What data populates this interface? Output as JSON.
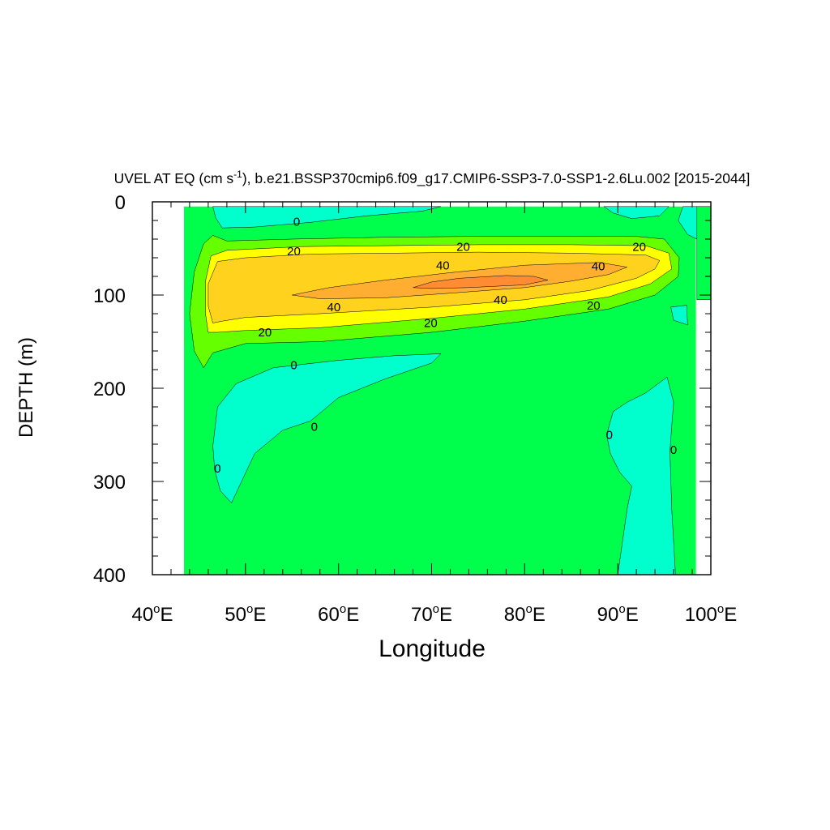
{
  "chart_data": {
    "type": "contour",
    "title": {
      "prefix": "UVEL AT EQ (cm s",
      "superscript": "-1",
      "suffix": "), b.e21.BSSP370cmip6.f09_g17.CMIP6-SSP3-7.0-SSP1-2.6Lu.002 [2015-2044]"
    },
    "xlabel": "Longitude",
    "ylabel": "DEPTH (m)",
    "xlim": [
      40,
      100
    ],
    "ylim": [
      0,
      400
    ],
    "y_inverted": true,
    "x_ticks": [
      {
        "value": 40,
        "num": "40",
        "sup": "o",
        "suffix": "E"
      },
      {
        "value": 50,
        "num": "50",
        "sup": "o",
        "suffix": "E"
      },
      {
        "value": 60,
        "num": "60",
        "sup": "o",
        "suffix": "E"
      },
      {
        "value": 70,
        "num": "70",
        "sup": "o",
        "suffix": "E"
      },
      {
        "value": 80,
        "num": "80",
        "sup": "o",
        "suffix": "E"
      },
      {
        "value": 90,
        "num": "90",
        "sup": "o",
        "suffix": "E"
      },
      {
        "value": 100,
        "num": "100",
        "sup": "o",
        "suffix": "E"
      }
    ],
    "y_ticks": [
      {
        "value": 0,
        "label": "0"
      },
      {
        "value": 100,
        "label": "100"
      },
      {
        "value": 200,
        "label": "200"
      },
      {
        "value": 300,
        "label": "300"
      },
      {
        "value": 400,
        "label": "400"
      }
    ],
    "level_colors": {
      "negative": "#00ffcc",
      "0_to_10": "#00ff4c",
      "10_to_20": "#66ff00",
      "20_to_30": "#ffff00",
      "30_to_40": "#ffd21e",
      "40_to_50": "#ffae32",
      "50_plus": "#ff8c32"
    },
    "regions": [
      {
        "level": "0_to_10",
        "points": [
          [
            43.4,
            5
          ],
          [
            98.4,
            5
          ],
          [
            98.4,
            110
          ],
          [
            98.4,
            400
          ],
          [
            43.4,
            400
          ]
        ]
      },
      {
        "level": "negative",
        "points": [
          [
            97,
            5
          ],
          [
            100,
            5
          ],
          [
            100,
            35
          ],
          [
            98.5,
            40
          ],
          [
            97.5,
            35
          ],
          [
            96.5,
            20
          ]
        ]
      },
      {
        "level": "0_to_10",
        "points": [
          [
            98.5,
            5
          ],
          [
            100,
            5
          ],
          [
            100,
            105
          ],
          [
            98.5,
            105
          ]
        ]
      },
      {
        "level": "negative",
        "points": [
          [
            46.5,
            5
          ],
          [
            71,
            5
          ],
          [
            69,
            10
          ],
          [
            63,
            15
          ],
          [
            57,
            22
          ],
          [
            51,
            27
          ],
          [
            47.5,
            28
          ],
          [
            46.8,
            17
          ]
        ]
      },
      {
        "level": "negative",
        "points": [
          [
            88.5,
            5
          ],
          [
            95.5,
            5
          ],
          [
            94.5,
            15
          ],
          [
            91.5,
            18
          ],
          [
            89.5,
            12
          ]
        ]
      },
      {
        "level": "negative",
        "points": [
          [
            95.7,
            113
          ],
          [
            97.4,
            111
          ],
          [
            97.5,
            132
          ],
          [
            96,
            127
          ]
        ]
      },
      {
        "level": "negative",
        "points": [
          [
            71,
            163
          ],
          [
            70,
            173
          ],
          [
            65,
            190
          ],
          [
            60,
            210
          ],
          [
            57,
            235
          ],
          [
            54,
            245
          ],
          [
            51,
            270
          ],
          [
            48.5,
            323
          ],
          [
            47.3,
            310
          ],
          [
            46.7,
            288
          ],
          [
            46.5,
            262
          ],
          [
            47,
            220
          ],
          [
            49,
            195
          ],
          [
            53,
            178
          ],
          [
            60,
            170
          ],
          [
            66,
            165
          ]
        ]
      },
      {
        "level": "negative",
        "points": [
          [
            95.3,
            188
          ],
          [
            96,
            215
          ],
          [
            95.8,
            240
          ],
          [
            95.6,
            268
          ],
          [
            95.8,
            330
          ],
          [
            96.2,
            400
          ],
          [
            90,
            400
          ],
          [
            91,
            330
          ],
          [
            91.5,
            305
          ],
          [
            90.2,
            290
          ],
          [
            89.2,
            270
          ],
          [
            88.8,
            250
          ],
          [
            89.5,
            225
          ],
          [
            91,
            215
          ],
          [
            93,
            205
          ]
        ]
      },
      {
        "level": "10_to_20",
        "points": [
          [
            45.5,
            178
          ],
          [
            44.5,
            160
          ],
          [
            44,
            120
          ],
          [
            44.5,
            75
          ],
          [
            45.5,
            45
          ],
          [
            46.5,
            36
          ],
          [
            48,
            42
          ],
          [
            55,
            40
          ],
          [
            65,
            38
          ],
          [
            75,
            37
          ],
          [
            85,
            37
          ],
          [
            92,
            37
          ],
          [
            95,
            40
          ],
          [
            96.6,
            60
          ],
          [
            96.5,
            80
          ],
          [
            94,
            100
          ],
          [
            89,
            115
          ],
          [
            80,
            128
          ],
          [
            70,
            140
          ],
          [
            58,
            150
          ],
          [
            50,
            152
          ],
          [
            46.5,
            162
          ]
        ]
      },
      {
        "level": "20_to_30",
        "points": [
          [
            46,
            140
          ],
          [
            45.7,
            120
          ],
          [
            45.7,
            85
          ],
          [
            46.3,
            58
          ],
          [
            48,
            52
          ],
          [
            56,
            48
          ],
          [
            65,
            47
          ],
          [
            75,
            46
          ],
          [
            85,
            46
          ],
          [
            93,
            47
          ],
          [
            95.5,
            55
          ],
          [
            95.8,
            72
          ],
          [
            93.5,
            88
          ],
          [
            89,
            102
          ],
          [
            80,
            115
          ],
          [
            70,
            125
          ],
          [
            58,
            135
          ],
          [
            50,
            138
          ],
          [
            47,
            140
          ]
        ]
      },
      {
        "level": "30_to_40",
        "points": [
          [
            46.5,
            130
          ],
          [
            46,
            112
          ],
          [
            46,
            88
          ],
          [
            47,
            64
          ],
          [
            50,
            60
          ],
          [
            57,
            56
          ],
          [
            66,
            55
          ],
          [
            75,
            54
          ],
          [
            85,
            55
          ],
          [
            93,
            57
          ],
          [
            94.5,
            63
          ],
          [
            94,
            72
          ],
          [
            92,
            82
          ],
          [
            87,
            95
          ],
          [
            80,
            105
          ],
          [
            70,
            113
          ],
          [
            58,
            120
          ],
          [
            50,
            124
          ],
          [
            47.5,
            128
          ]
        ]
      },
      {
        "level": "40_to_50",
        "points": [
          [
            55,
            100
          ],
          [
            59,
            92
          ],
          [
            65,
            84
          ],
          [
            72,
            76
          ],
          [
            80,
            68
          ],
          [
            88,
            65
          ],
          [
            91,
            70
          ],
          [
            89,
            78
          ],
          [
            85,
            85
          ],
          [
            80,
            92
          ],
          [
            72,
            98
          ],
          [
            65,
            103
          ],
          [
            58,
            104
          ]
        ]
      },
      {
        "level": "50_plus",
        "points": [
          [
            68,
            92
          ],
          [
            70,
            86
          ],
          [
            73,
            82
          ],
          [
            78,
            79
          ],
          [
            81,
            80
          ],
          [
            82.5,
            84
          ],
          [
            80,
            89
          ],
          [
            74,
            92
          ],
          [
            70,
            93
          ]
        ]
      }
    ],
    "contour_labels": [
      {
        "text": "0",
        "x": 55.5,
        "y": 22
      },
      {
        "text": "20",
        "x": 55.2,
        "y": 54
      },
      {
        "text": "20",
        "x": 73.4,
        "y": 49
      },
      {
        "text": "20",
        "x": 92.3,
        "y": 49
      },
      {
        "text": "40",
        "x": 71.2,
        "y": 69
      },
      {
        "text": "40",
        "x": 87.9,
        "y": 70
      },
      {
        "text": "40",
        "x": 59.5,
        "y": 114
      },
      {
        "text": "40",
        "x": 77.4,
        "y": 106
      },
      {
        "text": "20",
        "x": 87.4,
        "y": 112
      },
      {
        "text": "20",
        "x": 69.9,
        "y": 131
      },
      {
        "text": "20",
        "x": 52.1,
        "y": 141
      },
      {
        "text": "0",
        "x": 55.2,
        "y": 176
      },
      {
        "text": "0",
        "x": 57.4,
        "y": 242
      },
      {
        "text": "0",
        "x": 47,
        "y": 287
      },
      {
        "text": "0",
        "x": 89.1,
        "y": 251
      },
      {
        "text": "0",
        "x": 96,
        "y": 267
      }
    ]
  }
}
